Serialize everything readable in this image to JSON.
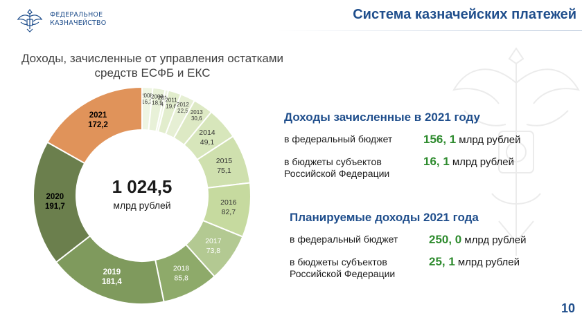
{
  "header": {
    "org_name": "ФЕДЕРАЛЬНОЕ\nКАЗНАЧЕЙСТВО",
    "title": "Система казначейских платежей"
  },
  "chart_title": "Доходы, зачисленные от управления остатками средств ЕСФБ и ЕКС",
  "total": {
    "value": "1 024,5",
    "unit": "млрд рублей"
  },
  "chart_data": {
    "type": "pie",
    "title": "Доходы, зачисленные от управления остатками средств ЕСФБ и ЕКС",
    "unit": "млрд рублей",
    "categories": [
      "2008",
      "2009",
      "2010",
      "2011",
      "2012",
      "2013",
      "2014",
      "2015",
      "2016",
      "2017",
      "2018",
      "2019",
      "2020",
      "2021"
    ],
    "labels": [
      "16,2",
      "18,9",
      "4,9",
      "19,6",
      "22,5",
      "30,6",
      "49,1",
      "75,1",
      "82,7",
      "73,8",
      "85,8",
      "181,4",
      "191,7",
      "172,2"
    ],
    "values": [
      16.2,
      18.9,
      4.9,
      19.6,
      22.5,
      30.6,
      49.1,
      75.1,
      82.7,
      73.8,
      85.8,
      181.4,
      191.7,
      172.2
    ],
    "colors": [
      "#eef5e2",
      "#e8f1d8",
      "#eef5e2",
      "#e2edcd",
      "#e6efd4",
      "#dde9c4",
      "#d7e6bb",
      "#cfe0ae",
      "#c6da9f",
      "#b3c992",
      "#8eaa6a",
      "#7f9a5d",
      "#6b7f4d",
      "#e0935a"
    ],
    "label_colors": [
      "#333333",
      "#333333",
      "#333333",
      "#333333",
      "#333333",
      "#333333",
      "#333333",
      "#333333",
      "#333333",
      "#ffffff",
      "#ffffff",
      "#ffffff",
      "#000000",
      "#000000"
    ]
  },
  "sections": [
    {
      "heading": "Доходы зачисленные в 2021 году",
      "rows": [
        {
          "label": "в федеральный бюджет",
          "value": "156, 1",
          "unit": "млрд рублей"
        },
        {
          "label": "в бюджеты субъектов Российской Федерации",
          "value": "16, 1",
          "unit": "млрд рублей"
        }
      ]
    },
    {
      "heading": "Планируемые доходы 2021 года",
      "rows": [
        {
          "label": "в федеральный бюджет",
          "value": "250, 0",
          "unit": "млрд рублей"
        },
        {
          "label": "в бюджеты субъектов Российской Федерации",
          "value": "25, 1",
          "unit": "млрд рублей"
        }
      ]
    }
  ],
  "page_number": "10"
}
